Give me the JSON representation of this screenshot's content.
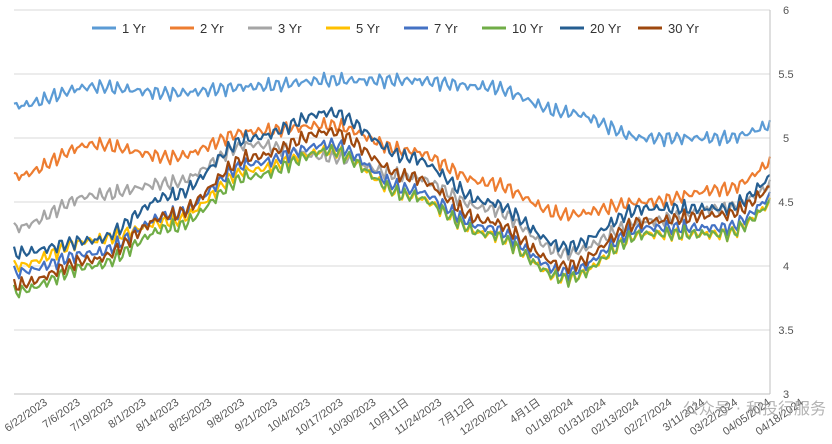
{
  "chart_data": {
    "type": "line",
    "title": "",
    "xlabel": "",
    "ylabel": "",
    "ylim": [
      3,
      6
    ],
    "yticks": [
      3,
      3.5,
      4,
      4.5,
      5,
      5.5,
      6
    ],
    "y_axis_side": "right",
    "grid": "horizontal",
    "legend_position": "top",
    "x_tick_labels": [
      "6/22/2023",
      "7/6/2023",
      "7/19/2023",
      "8/1/2023",
      "8/14/2023",
      "8/25/2023",
      "9/8/2023",
      "9/21/2023",
      "10/4/2023",
      "10/17/2023",
      "10/30/2023",
      "10月11日",
      "11/24/2023",
      "7月12日",
      "12/20/2021",
      "4月1日",
      "01/18/2024",
      "01/31/2024",
      "02/13/2024",
      "02/27/2024",
      "3/11/2024",
      "03/22/2024",
      "04/05/2024",
      "04/18/2024"
    ],
    "x": [
      0,
      2.4,
      4.8,
      7.2,
      9.6,
      12,
      14.4,
      16.8,
      19.2,
      21.6,
      24
    ],
    "series": [
      {
        "name": "1 Yr",
        "color": "#5b9bd5",
        "values": [
          5.25,
          5.4,
          5.35,
          5.4,
          5.45,
          5.45,
          5.4,
          5.2,
          5.0,
          5.0,
          5.17
        ]
      },
      {
        "name": "2 Yr",
        "color": "#ed7d31",
        "values": [
          4.7,
          4.95,
          4.85,
          5.05,
          5.1,
          4.9,
          4.65,
          4.4,
          4.5,
          4.6,
          4.95
        ]
      },
      {
        "name": "3 Yr",
        "color": "#a5a5a5",
        "values": [
          4.3,
          4.55,
          4.65,
          4.95,
          4.85,
          4.7,
          4.45,
          4.1,
          4.35,
          4.45,
          4.75
        ]
      },
      {
        "name": "5 Yr",
        "color": "#ffc000",
        "values": [
          4.0,
          4.2,
          4.35,
          4.75,
          4.9,
          4.55,
          4.25,
          3.9,
          4.25,
          4.25,
          4.65
        ]
      },
      {
        "name": "7 Yr",
        "color": "#4472c4",
        "values": [
          3.95,
          4.1,
          4.4,
          4.8,
          4.95,
          4.6,
          4.3,
          3.95,
          4.3,
          4.3,
          4.7
        ]
      },
      {
        "name": "10 Yr",
        "color": "#70ad47",
        "values": [
          3.8,
          4.0,
          4.3,
          4.7,
          4.9,
          4.55,
          4.25,
          3.9,
          4.25,
          4.25,
          4.65
        ]
      },
      {
        "name": "20 Yr",
        "color": "#255e91",
        "values": [
          4.1,
          4.2,
          4.55,
          5.0,
          5.2,
          4.85,
          4.5,
          4.15,
          4.45,
          4.45,
          4.85
        ]
      },
      {
        "name": "30 Yr",
        "color": "#9e480e",
        "values": [
          3.85,
          4.05,
          4.4,
          4.85,
          5.05,
          4.7,
          4.35,
          4.0,
          4.35,
          4.4,
          4.75
        ]
      }
    ]
  },
  "watermark": "公众号 · 和投行服务"
}
